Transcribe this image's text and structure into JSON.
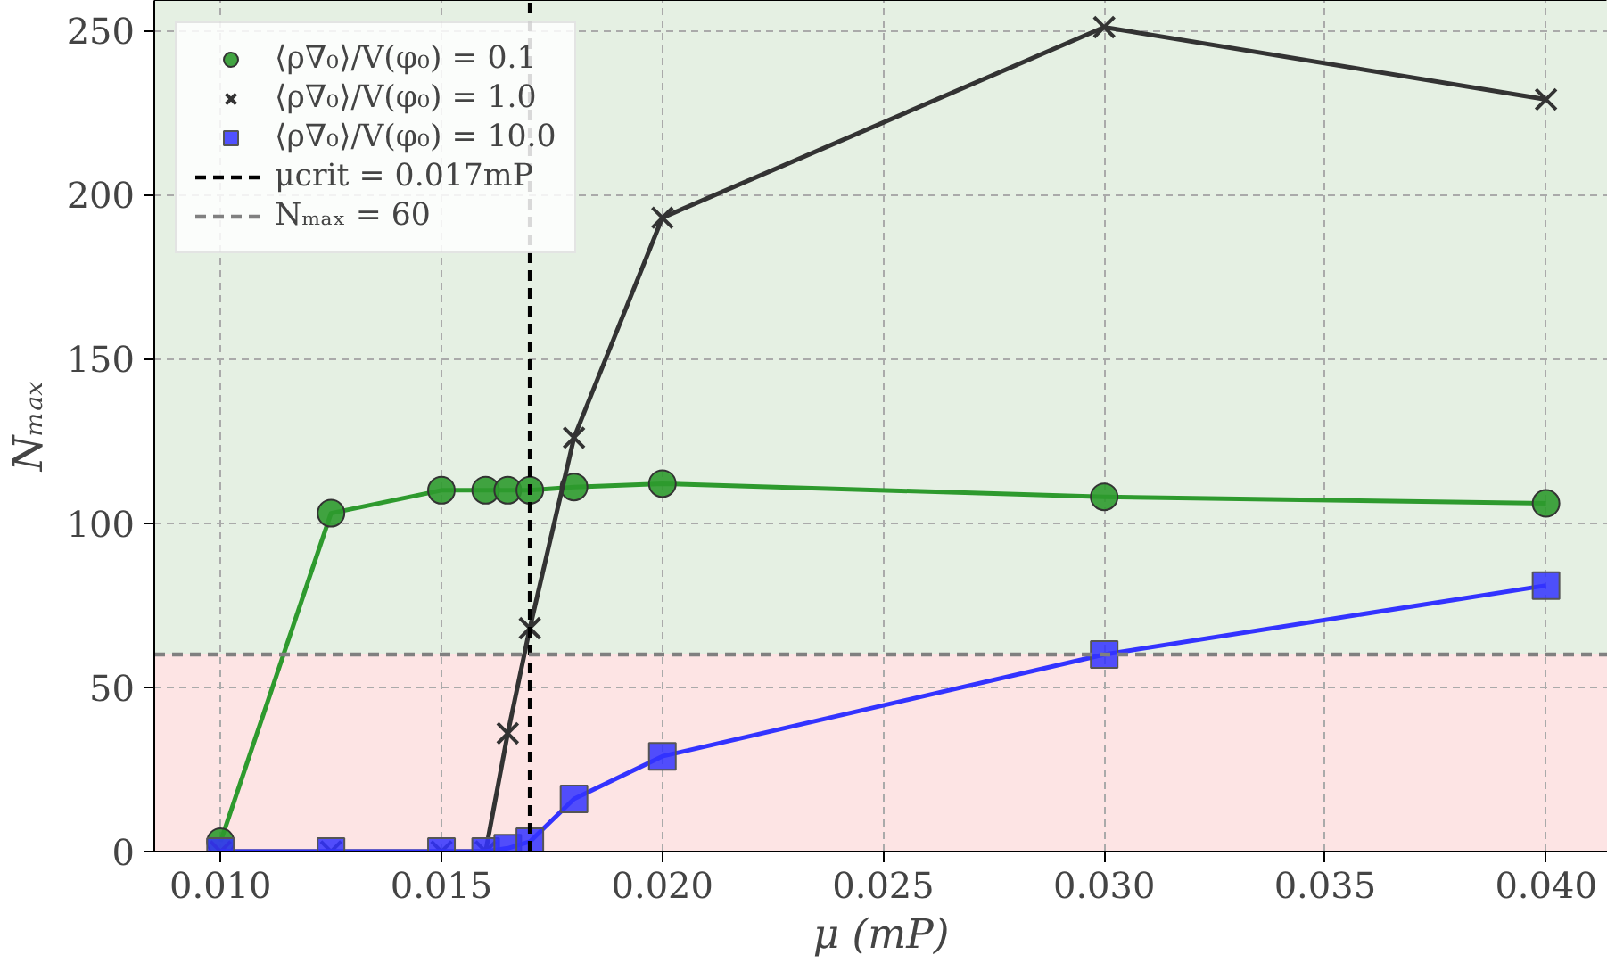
{
  "chart_data": {
    "type": "line",
    "xlabel": "μ (mP)",
    "ylabel": "Nₘₐₓ",
    "x": [
      0.01,
      0.0125,
      0.015,
      0.016,
      0.0165,
      0.017,
      0.018,
      0.02,
      0.03,
      0.04
    ],
    "series": [
      {
        "name": "⟨ρ∇₀⟩/V(φ₀) = 0.1",
        "color": "#2e9a2e",
        "marker": "circle",
        "values": [
          3,
          103,
          110,
          110,
          110,
          110,
          111,
          112,
          108,
          106
        ]
      },
      {
        "name": "⟨ρ∇₀⟩/V(φ₀) = 1.0",
        "color": "#333333",
        "marker": "cross",
        "values": [
          0,
          0,
          0,
          0,
          36,
          68,
          126,
          193,
          251,
          229
        ]
      },
      {
        "name": "⟨ρ∇₀⟩/V(φ₀) = 10.0",
        "color": "#3333ff",
        "marker": "square",
        "values": [
          0,
          0,
          0,
          0,
          1,
          3,
          16,
          29,
          60,
          81
        ]
      }
    ],
    "ref_lines": [
      {
        "axis": "x",
        "value": 0.017,
        "label": "μcrit = 0.017mP",
        "color": "#000000",
        "line_style": "dashed"
      },
      {
        "axis": "y",
        "value": 60,
        "label": "Nₘₐₓ = 60",
        "color": "#808080",
        "line_style": "dashed"
      }
    ],
    "bands": [
      {
        "axis": "y",
        "from": 0,
        "to": 60,
        "color": "#fde4e4"
      },
      {
        "axis": "y",
        "from": 60,
        "to": 259,
        "color": "#e5f0e3"
      }
    ],
    "xlim": [
      0.0085,
      0.0414
    ],
    "ylim": [
      0,
      259
    ],
    "xticks": [
      {
        "value": 0.01,
        "label": "0.010"
      },
      {
        "value": 0.015,
        "label": "0.015"
      },
      {
        "value": 0.02,
        "label": "0.020"
      },
      {
        "value": 0.025,
        "label": "0.025"
      },
      {
        "value": 0.03,
        "label": "0.030"
      },
      {
        "value": 0.035,
        "label": "0.035"
      },
      {
        "value": 0.04,
        "label": "0.040"
      }
    ],
    "yticks": [
      0,
      50,
      100,
      150,
      200,
      250
    ],
    "grid": true,
    "legend": "top left"
  }
}
